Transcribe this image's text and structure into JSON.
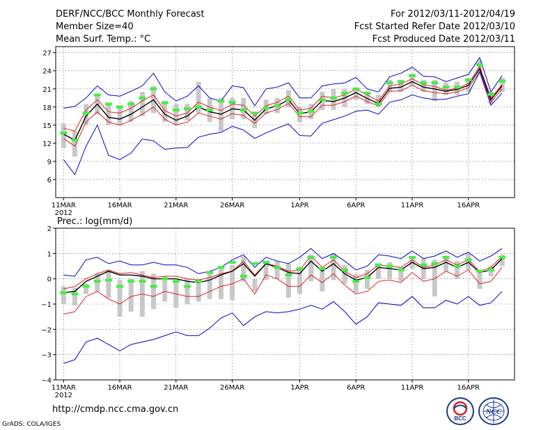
{
  "header": {
    "title": "DERF/NCC/BCC Monthly Forecast",
    "member_size": "Member Size=40",
    "variable": "Mean Surf. Temp.: °C",
    "period": "For 2012/03/11-2012/04/19",
    "started": "Fcst Started Refer Date 2012/03/10",
    "produced": "Fcst Produced Date 2012/03/11"
  },
  "footer": {
    "url": "http://cmdp.ncc.cma.gov.cn",
    "credit": "GrADS: COLA/IGES"
  },
  "logos": {
    "bcc": "BCC",
    "ncc": "NCC"
  },
  "colors": {
    "max_min": "#0000cc",
    "spread": "#dd2222",
    "mean": "#000000",
    "member_bar": "#c8c8c8",
    "median": "#44ee44"
  },
  "chart_data": [
    {
      "type": "line",
      "title": "Mean Surf. Temp.: °C",
      "x_tick_labels": [
        "11MAR",
        "16MAR",
        "21MAR",
        "26MAR",
        "1APR",
        "6APR",
        "11APR",
        "16APR"
      ],
      "x_tick_days": [
        1,
        6,
        11,
        16,
        22,
        27,
        32,
        37
      ],
      "year_label": "2012",
      "yticks": [
        6,
        9,
        12,
        15,
        18,
        21,
        24,
        27
      ],
      "ylim": [
        3,
        28
      ],
      "days": [
        1,
        2,
        3,
        4,
        5,
        6,
        7,
        8,
        9,
        10,
        11,
        12,
        13,
        14,
        15,
        16,
        17,
        18,
        19,
        20,
        21,
        22,
        23,
        24,
        25,
        26,
        27,
        28,
        29,
        30,
        31,
        32,
        33,
        34,
        35,
        36,
        37,
        38,
        39,
        40
      ],
      "series": [
        {
          "name": "max",
          "color": "#0000cc",
          "values": [
            17.8,
            18.1,
            19.5,
            21.5,
            20.0,
            19.8,
            20.6,
            21.5,
            23.6,
            20.5,
            19.0,
            19.8,
            21.5,
            19.5,
            19.0,
            21.5,
            21.2,
            18.2,
            21.0,
            21.3,
            22.0,
            19.5,
            19.5,
            21.5,
            21.8,
            22.0,
            22.9,
            21.0,
            20.5,
            23.0,
            23.6,
            24.6,
            23.1,
            23.0,
            22.2,
            22.8,
            23.4,
            26.2,
            20.5,
            23.2
          ]
        },
        {
          "name": "spread_upper",
          "color": "#dd2222",
          "values": [
            14.5,
            14.0,
            17.5,
            19.2,
            17.2,
            17.0,
            17.8,
            19.0,
            20.0,
            17.4,
            16.5,
            17.0,
            18.8,
            18.0,
            17.4,
            18.5,
            18.3,
            16.5,
            18.2,
            18.8,
            19.8,
            17.5,
            17.8,
            19.8,
            19.5,
            20.0,
            21.0,
            20.0,
            19.0,
            21.5,
            21.8,
            22.7,
            21.7,
            21.4,
            20.8,
            21.1,
            21.9,
            24.7,
            19.5,
            21.7
          ]
        },
        {
          "name": "mean",
          "color": "#000000",
          "values": [
            13.5,
            12.5,
            16.5,
            18.5,
            16.3,
            16.0,
            16.8,
            18.0,
            19.2,
            16.8,
            15.8,
            16.5,
            18.0,
            17.2,
            16.8,
            17.7,
            17.5,
            15.8,
            17.7,
            18.2,
            19.2,
            16.9,
            17.2,
            19.1,
            18.9,
            19.5,
            20.4,
            19.4,
            18.6,
            21.1,
            21.3,
            22.2,
            21.3,
            21.0,
            20.6,
            20.9,
            21.6,
            24.3,
            19.2,
            21.5
          ]
        },
        {
          "name": "spread_lower",
          "color": "#dd2222",
          "values": [
            12.8,
            11.5,
            15.5,
            17.2,
            15.5,
            15.0,
            15.8,
            16.8,
            18.0,
            16.0,
            15.0,
            15.5,
            17.0,
            16.5,
            16.0,
            16.9,
            16.6,
            15.3,
            17.0,
            17.6,
            18.6,
            16.4,
            16.4,
            18.3,
            18.3,
            18.9,
            19.8,
            18.9,
            18.2,
            20.6,
            20.7,
            21.6,
            20.7,
            20.4,
            20.2,
            20.5,
            21.2,
            23.8,
            18.8,
            21.0
          ]
        },
        {
          "name": "min",
          "color": "#0000cc",
          "values": [
            9.3,
            6.8,
            11.5,
            15.0,
            10.0,
            9.3,
            10.4,
            12.7,
            12.4,
            11.0,
            11.2,
            11.3,
            13.0,
            13.5,
            13.8,
            14.8,
            14.2,
            12.8,
            13.7,
            14.5,
            15.2,
            13.3,
            13.2,
            15.3,
            15.9,
            16.5,
            17.3,
            17.5,
            16.8,
            18.8,
            19.2,
            20.0,
            19.5,
            19.2,
            19.3,
            19.8,
            20.2,
            23.8,
            18.3,
            20.3
          ]
        }
      ],
      "member_ranges": [
        [
          11.2,
          15.3
        ],
        [
          9.8,
          14.0
        ],
        [
          15.0,
          18.5
        ],
        [
          16.8,
          20.0
        ],
        [
          15.0,
          18.5
        ],
        [
          15.0,
          18.3
        ],
        [
          15.5,
          19.0
        ],
        [
          16.5,
          20.5
        ],
        [
          17.0,
          21.5
        ],
        [
          15.5,
          19.0
        ],
        [
          15.0,
          18.5
        ],
        [
          15.8,
          18.5
        ],
        [
          17.0,
          22.2
        ],
        [
          15.5,
          19.5
        ],
        [
          14.0,
          19.5
        ],
        [
          16.0,
          19.5
        ],
        [
          16.0,
          19.5
        ],
        [
          14.5,
          16.7
        ],
        [
          16.8,
          19.2
        ],
        [
          17.0,
          19.5
        ],
        [
          18.0,
          20.8
        ],
        [
          15.5,
          18.0
        ],
        [
          16.0,
          18.5
        ],
        [
          17.5,
          20.5
        ],
        [
          17.5,
          21.0
        ],
        [
          18.0,
          21.0
        ],
        [
          19.2,
          21.2
        ],
        [
          18.5,
          20.5
        ],
        [
          18.0,
          20.0
        ],
        [
          20.5,
          22.5
        ],
        [
          20.5,
          22.5
        ],
        [
          21.5,
          23.5
        ],
        [
          20.5,
          22.5
        ],
        [
          19.0,
          22.5
        ],
        [
          20.0,
          22.0
        ],
        [
          20.0,
          22.2
        ],
        [
          20.5,
          22.5
        ],
        [
          23.5,
          25.8
        ],
        [
          18.5,
          20.5
        ],
        [
          20.5,
          22.8
        ]
      ],
      "medians": [
        13.7,
        12.5,
        17.0,
        20.0,
        18.5,
        18.0,
        18.5,
        19.5,
        21.0,
        18.7,
        17.5,
        17.7,
        18.0,
        17.5,
        19.0,
        18.8,
        17.5,
        17.0,
        17.8,
        18.2,
        19.2,
        17.0,
        17.3,
        19.2,
        19.5,
        20.3,
        21.0,
        20.3,
        18.5,
        22.0,
        22.2,
        23.2,
        22.0,
        22.0,
        21.3,
        21.3,
        22.5,
        25.0,
        20.1,
        22.3
      ]
    },
    {
      "type": "line",
      "title": "Prec.: log(mm/d)",
      "x_tick_labels": [
        "11MAR",
        "16MAR",
        "21MAR",
        "26MAR",
        "1APR",
        "6APR",
        "11APR",
        "16APR"
      ],
      "x_tick_days": [
        1,
        6,
        11,
        16,
        22,
        27,
        32,
        37
      ],
      "year_label": "2012",
      "yticks": [
        -4,
        -3,
        -2,
        -1,
        0,
        1,
        2
      ],
      "ylim": [
        -4,
        2
      ],
      "days": [
        1,
        2,
        3,
        4,
        5,
        6,
        7,
        8,
        9,
        10,
        11,
        12,
        13,
        14,
        15,
        16,
        17,
        18,
        19,
        20,
        21,
        22,
        23,
        24,
        25,
        26,
        27,
        28,
        29,
        30,
        31,
        32,
        33,
        34,
        35,
        36,
        37,
        38,
        39,
        40
      ],
      "series": [
        {
          "name": "max",
          "color": "#0000cc",
          "values": [
            0.15,
            0.1,
            0.75,
            0.85,
            0.6,
            0.7,
            0.55,
            0.55,
            0.65,
            0.55,
            0.55,
            0.45,
            0.2,
            0.3,
            0.45,
            0.75,
            0.95,
            0.45,
            0.85,
            0.7,
            0.6,
            0.85,
            1.2,
            0.8,
            1.0,
            0.7,
            0.35,
            0.5,
            0.95,
            0.9,
            0.8,
            1.1,
            0.8,
            0.9,
            1.1,
            0.85,
            1.05,
            0.7,
            0.9,
            1.2
          ]
        },
        {
          "name": "spread_upper",
          "color": "#dd2222",
          "values": [
            -0.4,
            -0.3,
            0.0,
            0.2,
            0.35,
            0.2,
            0.25,
            0.15,
            0.05,
            0.1,
            0.1,
            0.0,
            -0.05,
            0.05,
            0.2,
            0.3,
            0.7,
            0.15,
            0.6,
            0.5,
            0.3,
            0.35,
            0.9,
            0.45,
            0.75,
            0.3,
            0.05,
            0.2,
            0.55,
            0.5,
            0.45,
            0.75,
            0.45,
            0.55,
            0.75,
            0.55,
            0.75,
            0.3,
            0.45,
            0.9
          ]
        },
        {
          "name": "mean",
          "color": "#000000",
          "values": [
            -0.55,
            -0.5,
            -0.1,
            0.1,
            0.3,
            0.15,
            0.15,
            0.1,
            0.0,
            0.0,
            0.0,
            -0.1,
            -0.15,
            -0.05,
            0.15,
            0.3,
            0.6,
            0.1,
            0.6,
            0.45,
            0.25,
            0.2,
            0.7,
            0.3,
            0.6,
            0.2,
            -0.05,
            0.05,
            0.45,
            0.4,
            0.35,
            0.65,
            0.4,
            0.45,
            0.65,
            0.45,
            0.65,
            0.25,
            0.35,
            0.8
          ]
        },
        {
          "name": "spread_lower",
          "color": "#dd2222",
          "values": [
            -1.4,
            -1.3,
            -0.7,
            -0.5,
            -0.8,
            -1.0,
            -0.7,
            -0.6,
            -0.7,
            -0.5,
            -0.6,
            -0.7,
            -0.7,
            -0.5,
            -0.3,
            -0.2,
            0.0,
            -0.6,
            0.15,
            0.0,
            -0.3,
            -0.3,
            0.15,
            -0.15,
            0.2,
            -0.25,
            -0.6,
            -0.5,
            -0.1,
            -0.05,
            -0.15,
            0.25,
            -0.1,
            0.0,
            0.3,
            0.1,
            0.35,
            -0.2,
            -0.1,
            0.45
          ]
        },
        {
          "name": "min",
          "color": "#0000cc",
          "values": [
            -3.35,
            -3.2,
            -2.5,
            -2.35,
            -2.6,
            -2.85,
            -2.6,
            -2.5,
            -2.4,
            -2.25,
            -2.1,
            -2.25,
            -2.25,
            -1.95,
            -1.55,
            -1.35,
            -1.85,
            -1.5,
            -1.3,
            -1.35,
            -1.3,
            -1.2,
            -1.05,
            -1.2,
            -0.9,
            -1.3,
            -1.8,
            -1.5,
            -0.95,
            -1.0,
            -1.05,
            -0.7,
            -1.15,
            -1.15,
            -0.85,
            -1.0,
            -0.7,
            -1.05,
            -0.95,
            -0.5
          ]
        },
        {
          "name": "ensemble_mean_black",
          "color": "#000000",
          "values": []
        }
      ],
      "member_ranges": [
        [
          -1.0,
          -0.3
        ],
        [
          -1.05,
          -0.35
        ],
        [
          -0.6,
          -0.2
        ],
        [
          -0.5,
          0.2
        ],
        [
          -0.75,
          0.35
        ],
        [
          -1.5,
          -0.05
        ],
        [
          -1.3,
          0.0
        ],
        [
          -1.5,
          0.3
        ],
        [
          -1.2,
          0.2
        ],
        [
          -0.9,
          0.1
        ],
        [
          -1.15,
          -0.05
        ],
        [
          -1.0,
          0.0
        ],
        [
          -0.9,
          0.0
        ],
        [
          -0.8,
          0.25
        ],
        [
          -0.8,
          0.45
        ],
        [
          -0.85,
          0.55
        ],
        [
          -0.1,
          0.9
        ],
        [
          -0.5,
          0.0
        ],
        [
          -0.05,
          0.7
        ],
        [
          0.0,
          0.7
        ],
        [
          -0.75,
          0.6
        ],
        [
          -0.6,
          0.35
        ],
        [
          -0.1,
          0.95
        ],
        [
          -0.5,
          0.4
        ],
        [
          -0.05,
          1.0
        ],
        [
          -0.2,
          0.55
        ],
        [
          -0.55,
          0.2
        ],
        [
          -0.4,
          0.35
        ],
        [
          0.0,
          0.6
        ],
        [
          0.0,
          0.65
        ],
        [
          -0.1,
          0.45
        ],
        [
          0.4,
          0.9
        ],
        [
          0.0,
          0.8
        ],
        [
          -0.7,
          0.75
        ],
        [
          0.3,
          0.9
        ],
        [
          0.0,
          0.7
        ],
        [
          0.35,
          1.0
        ],
        [
          -0.4,
          0.25
        ],
        [
          0.1,
          0.5
        ],
        [
          0.5,
          0.95
        ]
      ],
      "medians": [
        -0.55,
        -0.6,
        -0.3,
        -0.1,
        -0.05,
        -0.3,
        -0.1,
        -0.1,
        -0.3,
        0.0,
        -0.1,
        -0.3,
        -0.1,
        0.25,
        0.45,
        0.65,
        0.1,
        0.6,
        0.65,
        0.45,
        0.15,
        0.4,
        0.85,
        0.4,
        0.85,
        0.35,
        -0.1,
        0.05,
        0.55,
        0.5,
        0.35,
        0.85,
        0.55,
        0.6,
        0.85,
        0.5,
        0.75,
        0.3,
        0.35,
        0.85
      ]
    }
  ]
}
